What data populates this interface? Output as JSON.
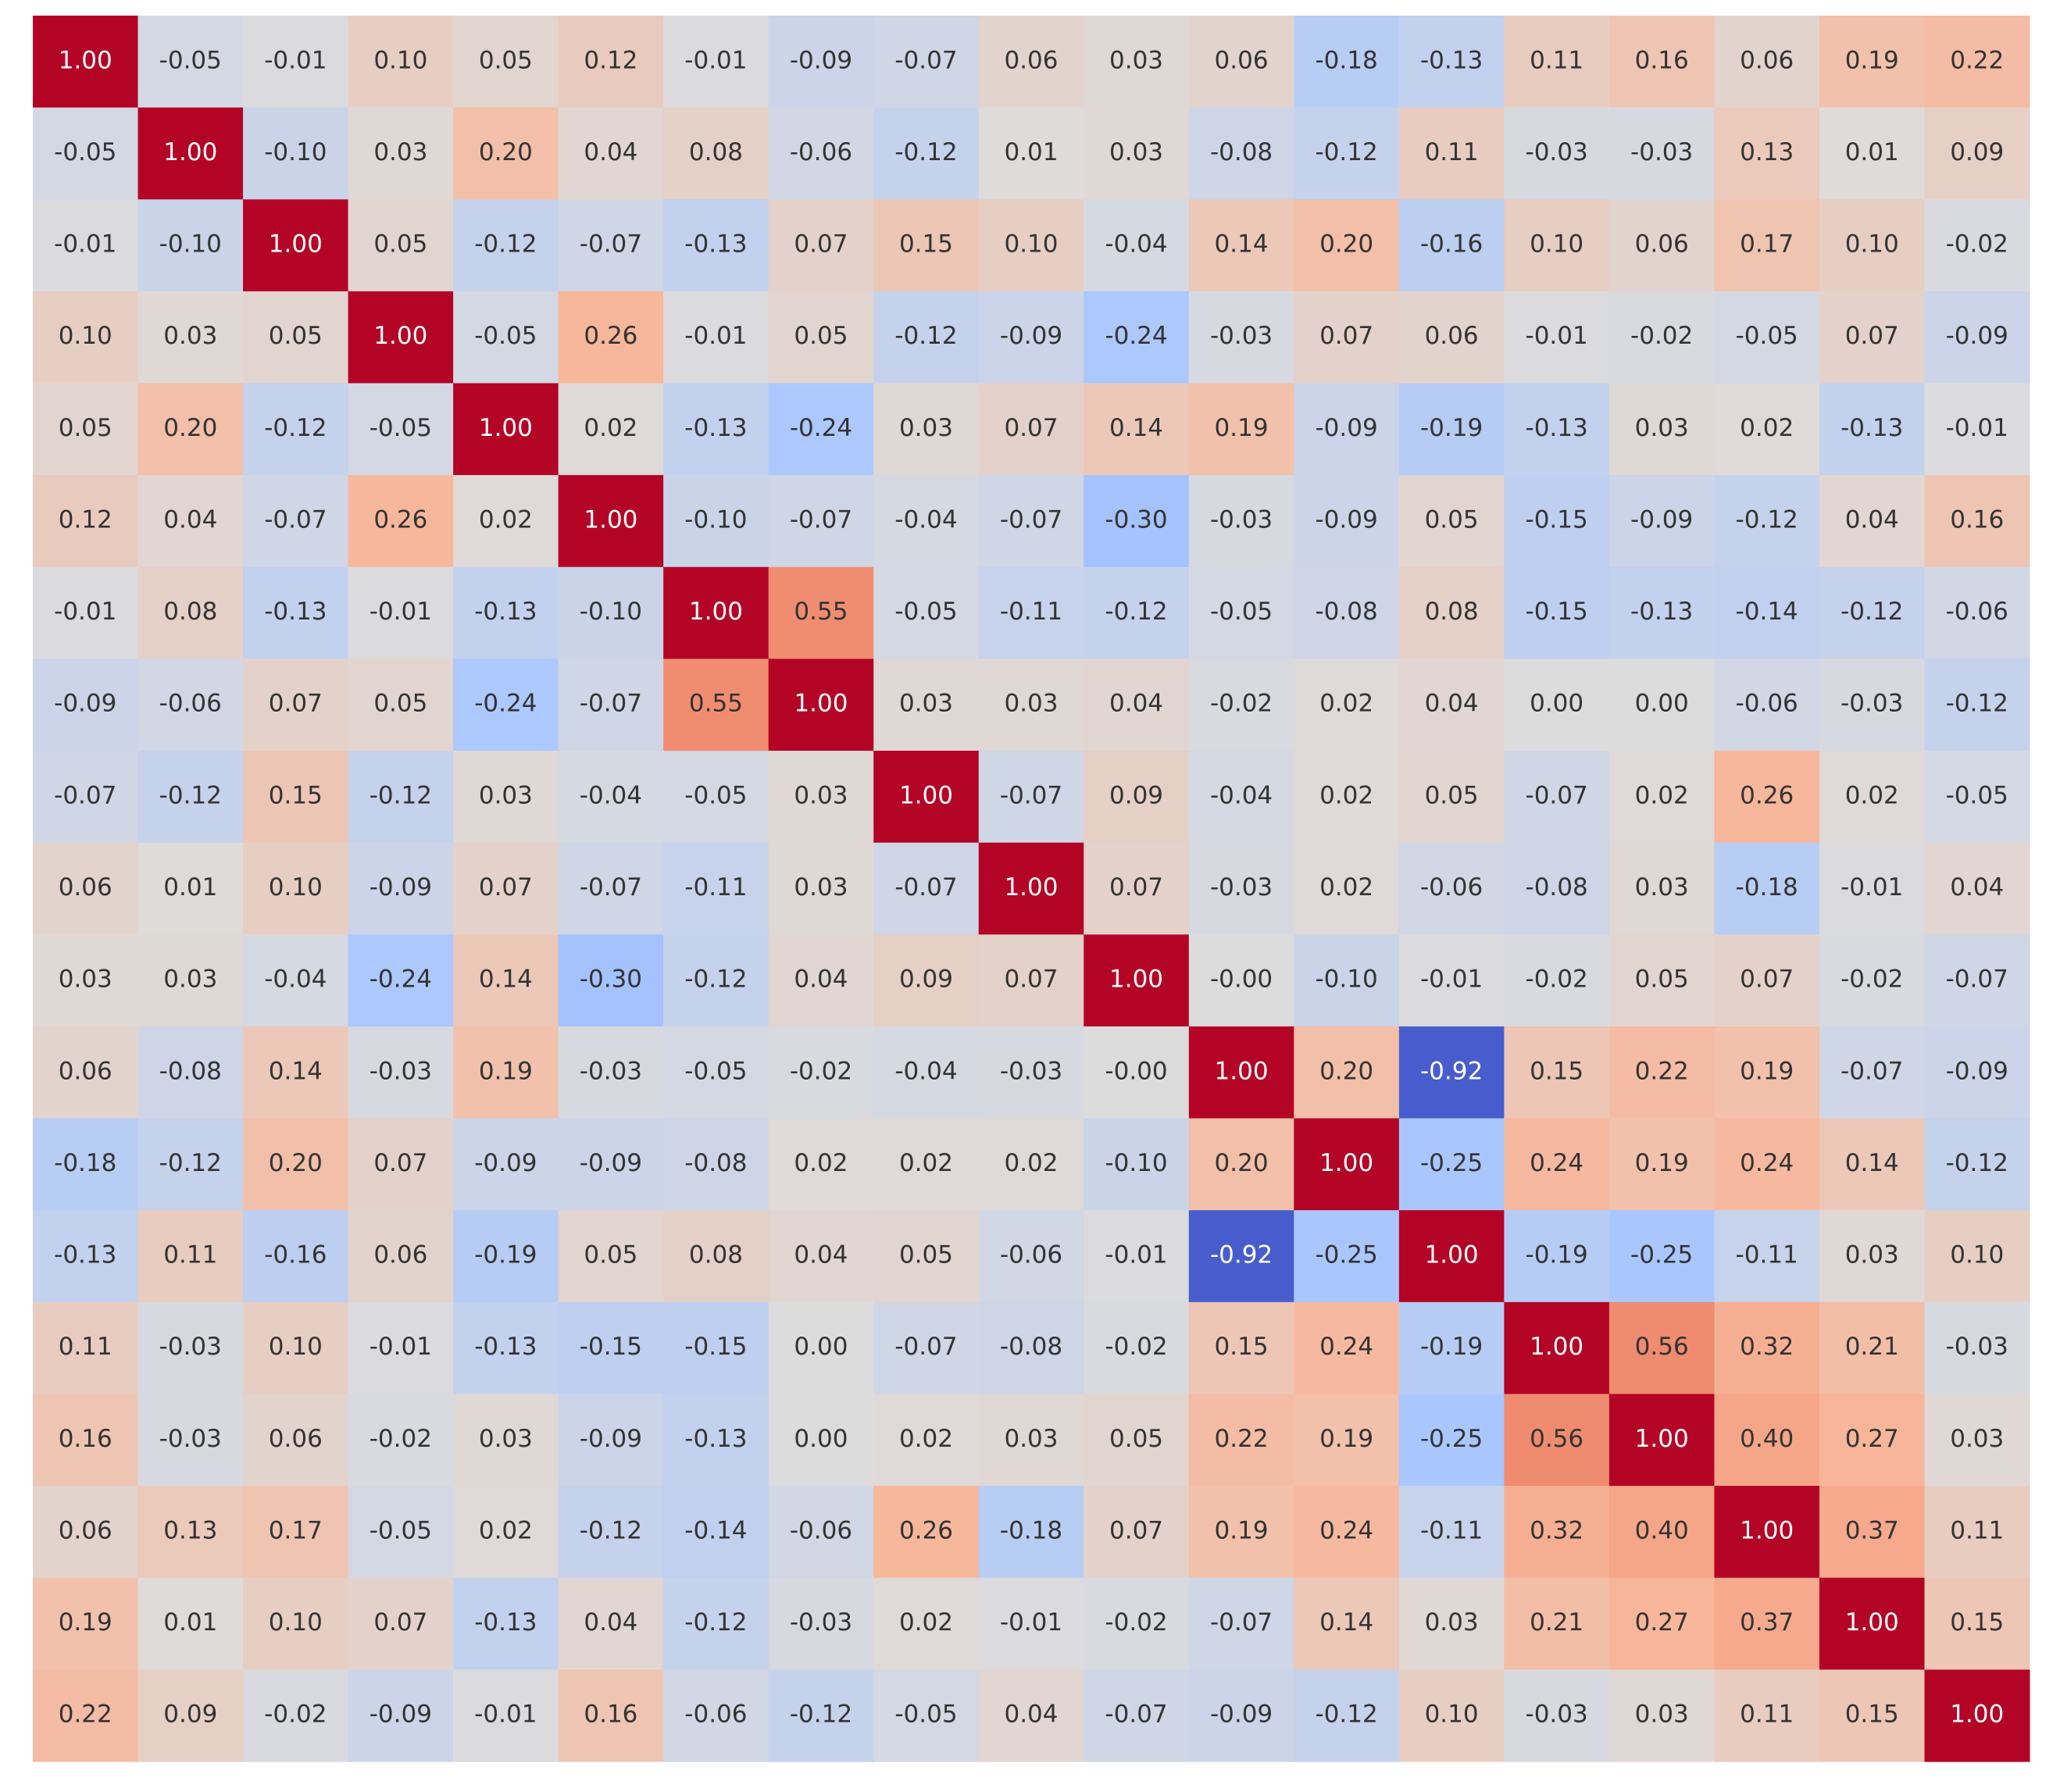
{
  "chart_data": {
    "type": "heatmap",
    "colormap": "coolwarm",
    "vlim": [
      -1,
      1
    ],
    "values": [
      [
        1.0,
        -0.05,
        -0.01,
        0.1,
        0.05,
        0.12,
        -0.01,
        -0.09,
        -0.07,
        0.06,
        0.03,
        0.06,
        -0.18,
        -0.13,
        0.11,
        0.16,
        0.06,
        0.19,
        0.22
      ],
      [
        -0.05,
        1.0,
        -0.1,
        0.03,
        0.2,
        0.04,
        0.08,
        -0.06,
        -0.12,
        0.01,
        0.03,
        -0.08,
        -0.12,
        0.11,
        -0.03,
        -0.03,
        0.13,
        0.01,
        0.09
      ],
      [
        -0.01,
        -0.1,
        1.0,
        0.05,
        -0.12,
        -0.07,
        -0.13,
        0.07,
        0.15,
        0.1,
        -0.04,
        0.14,
        0.2,
        -0.16,
        0.1,
        0.06,
        0.17,
        0.1,
        -0.02
      ],
      [
        0.1,
        0.03,
        0.05,
        1.0,
        -0.05,
        0.26,
        -0.01,
        0.05,
        -0.12,
        -0.09,
        -0.24,
        -0.03,
        0.07,
        0.06,
        -0.01,
        -0.02,
        -0.05,
        0.07,
        -0.09
      ],
      [
        0.05,
        0.2,
        -0.12,
        -0.05,
        1.0,
        0.02,
        -0.13,
        -0.24,
        0.03,
        0.07,
        0.14,
        0.19,
        -0.09,
        -0.19,
        -0.13,
        0.03,
        0.02,
        -0.13,
        -0.01
      ],
      [
        0.12,
        0.04,
        -0.07,
        0.26,
        0.02,
        1.0,
        -0.1,
        -0.07,
        -0.04,
        -0.07,
        -0.3,
        -0.03,
        -0.09,
        0.05,
        -0.15,
        -0.09,
        -0.12,
        0.04,
        0.16
      ],
      [
        -0.01,
        0.08,
        -0.13,
        -0.01,
        -0.13,
        -0.1,
        1.0,
        0.55,
        -0.05,
        -0.11,
        -0.12,
        -0.05,
        -0.08,
        0.08,
        -0.15,
        -0.13,
        -0.14,
        -0.12,
        -0.06
      ],
      [
        -0.09,
        -0.06,
        0.07,
        0.05,
        -0.24,
        -0.07,
        0.55,
        1.0,
        0.03,
        0.03,
        0.04,
        -0.02,
        0.02,
        0.04,
        0.0,
        0.0,
        -0.06,
        -0.03,
        -0.12
      ],
      [
        -0.07,
        -0.12,
        0.15,
        -0.12,
        0.03,
        -0.04,
        -0.05,
        0.03,
        1.0,
        -0.07,
        0.09,
        -0.04,
        0.02,
        0.05,
        -0.07,
        0.02,
        0.26,
        0.02,
        -0.05
      ],
      [
        0.06,
        0.01,
        0.1,
        -0.09,
        0.07,
        -0.07,
        -0.11,
        0.03,
        -0.07,
        1.0,
        0.07,
        -0.03,
        0.02,
        -0.06,
        -0.08,
        0.03,
        -0.18,
        -0.01,
        0.04
      ],
      [
        0.03,
        0.03,
        -0.04,
        -0.24,
        0.14,
        -0.3,
        -0.12,
        0.04,
        0.09,
        0.07,
        1.0,
        -0.0,
        -0.1,
        -0.01,
        -0.02,
        0.05,
        0.07,
        -0.02,
        -0.07
      ],
      [
        0.06,
        -0.08,
        0.14,
        -0.03,
        0.19,
        -0.03,
        -0.05,
        -0.02,
        -0.04,
        -0.03,
        -0.0,
        1.0,
        0.2,
        -0.92,
        0.15,
        0.22,
        0.19,
        -0.07,
        -0.09
      ],
      [
        -0.18,
        -0.12,
        0.2,
        0.07,
        -0.09,
        -0.09,
        -0.08,
        0.02,
        0.02,
        0.02,
        -0.1,
        0.2,
        1.0,
        -0.25,
        0.24,
        0.19,
        0.24,
        0.14,
        -0.12
      ],
      [
        -0.13,
        0.11,
        -0.16,
        0.06,
        -0.19,
        0.05,
        0.08,
        0.04,
        0.05,
        -0.06,
        -0.01,
        -0.92,
        -0.25,
        1.0,
        -0.19,
        -0.25,
        -0.11,
        0.03,
        0.1
      ],
      [
        0.11,
        -0.03,
        0.1,
        -0.01,
        -0.13,
        -0.15,
        -0.15,
        0.0,
        -0.07,
        -0.08,
        -0.02,
        0.15,
        0.24,
        -0.19,
        1.0,
        0.56,
        0.32,
        0.21,
        -0.03
      ],
      [
        0.16,
        -0.03,
        0.06,
        -0.02,
        0.03,
        -0.09,
        -0.13,
        0.0,
        0.02,
        0.03,
        0.05,
        0.22,
        0.19,
        -0.25,
        0.56,
        1.0,
        0.4,
        0.27,
        0.03
      ],
      [
        0.06,
        0.13,
        0.17,
        -0.05,
        0.02,
        -0.12,
        -0.14,
        -0.06,
        0.26,
        -0.18,
        0.07,
        0.19,
        0.24,
        -0.11,
        0.32,
        0.4,
        1.0,
        0.37,
        0.11
      ],
      [
        0.19,
        0.01,
        0.1,
        0.07,
        -0.13,
        0.04,
        -0.12,
        -0.03,
        0.02,
        -0.01,
        -0.02,
        -0.07,
        0.14,
        0.03,
        0.21,
        0.27,
        0.37,
        1.0,
        0.15
      ],
      [
        0.22,
        0.09,
        -0.02,
        -0.09,
        -0.01,
        0.16,
        -0.06,
        -0.12,
        -0.05,
        0.04,
        -0.07,
        -0.09,
        -0.12,
        0.1,
        -0.03,
        0.03,
        0.11,
        0.15,
        1.0
      ]
    ],
    "value_labels": [
      [
        "1.00",
        "-0.05",
        "-0.01",
        "0.10",
        "0.05",
        "0.12",
        "-0.01",
        "-0.09",
        "-0.07",
        "0.06",
        "0.03",
        "0.06",
        "-0.18",
        "-0.13",
        "0.11",
        "0.16",
        "0.06",
        "0.19",
        "0.22"
      ],
      [
        "-0.05",
        "1.00",
        "-0.10",
        "0.03",
        "0.20",
        "0.04",
        "0.08",
        "-0.06",
        "-0.12",
        "0.01",
        "0.03",
        "-0.08",
        "-0.12",
        "0.11",
        "-0.03",
        "-0.03",
        "0.13",
        "0.01",
        "0.09"
      ],
      [
        "-0.01",
        "-0.10",
        "1.00",
        "0.05",
        "-0.12",
        "-0.07",
        "-0.13",
        "0.07",
        "0.15",
        "0.10",
        "-0.04",
        "0.14",
        "0.20",
        "-0.16",
        "0.10",
        "0.06",
        "0.17",
        "0.10",
        "-0.02"
      ],
      [
        "0.10",
        "0.03",
        "0.05",
        "1.00",
        "-0.05",
        "0.26",
        "-0.01",
        "0.05",
        "-0.12",
        "-0.09",
        "-0.24",
        "-0.03",
        "0.07",
        "0.06",
        "-0.01",
        "-0.02",
        "-0.05",
        "0.07",
        "-0.09"
      ],
      [
        "0.05",
        "0.20",
        "-0.12",
        "-0.05",
        "1.00",
        "0.02",
        "-0.13",
        "-0.24",
        "0.03",
        "0.07",
        "0.14",
        "0.19",
        "-0.09",
        "-0.19",
        "-0.13",
        "0.03",
        "0.02",
        "-0.13",
        "-0.01"
      ],
      [
        "0.12",
        "0.04",
        "-0.07",
        "0.26",
        "0.02",
        "1.00",
        "-0.10",
        "-0.07",
        "-0.04",
        "-0.07",
        "-0.30",
        "-0.03",
        "-0.09",
        "0.05",
        "-0.15",
        "-0.09",
        "-0.12",
        "0.04",
        "0.16"
      ],
      [
        "-0.01",
        "0.08",
        "-0.13",
        "-0.01",
        "-0.13",
        "-0.10",
        "1.00",
        "0.55",
        "-0.05",
        "-0.11",
        "-0.12",
        "-0.05",
        "-0.08",
        "0.08",
        "-0.15",
        "-0.13",
        "-0.14",
        "-0.12",
        "-0.06"
      ],
      [
        "-0.09",
        "-0.06",
        "0.07",
        "0.05",
        "-0.24",
        "-0.07",
        "0.55",
        "1.00",
        "0.03",
        "0.03",
        "0.04",
        "-0.02",
        "0.02",
        "0.04",
        "0.00",
        "0.00",
        "-0.06",
        "-0.03",
        "-0.12"
      ],
      [
        "-0.07",
        "-0.12",
        "0.15",
        "-0.12",
        "0.03",
        "-0.04",
        "-0.05",
        "0.03",
        "1.00",
        "-0.07",
        "0.09",
        "-0.04",
        "0.02",
        "0.05",
        "-0.07",
        "0.02",
        "0.26",
        "0.02",
        "-0.05"
      ],
      [
        "0.06",
        "0.01",
        "0.10",
        "-0.09",
        "0.07",
        "-0.07",
        "-0.11",
        "0.03",
        "-0.07",
        "1.00",
        "0.07",
        "-0.03",
        "0.02",
        "-0.06",
        "-0.08",
        "0.03",
        "-0.18",
        "-0.01",
        "0.04"
      ],
      [
        "0.03",
        "0.03",
        "-0.04",
        "-0.24",
        "0.14",
        "-0.30",
        "-0.12",
        "0.04",
        "0.09",
        "0.07",
        "1.00",
        "-0.00",
        "-0.10",
        "-0.01",
        "-0.02",
        "0.05",
        "0.07",
        "-0.02",
        "-0.07"
      ],
      [
        "0.06",
        "-0.08",
        "0.14",
        "-0.03",
        "0.19",
        "-0.03",
        "-0.05",
        "-0.02",
        "-0.04",
        "-0.03",
        "-0.00",
        "1.00",
        "0.20",
        "-0.92",
        "0.15",
        "0.22",
        "0.19",
        "-0.07",
        "-0.09"
      ],
      [
        "-0.18",
        "-0.12",
        "0.20",
        "0.07",
        "-0.09",
        "-0.09",
        "-0.08",
        "0.02",
        "0.02",
        "0.02",
        "-0.10",
        "0.20",
        "1.00",
        "-0.25",
        "0.24",
        "0.19",
        "0.24",
        "0.14",
        "-0.12"
      ],
      [
        "-0.13",
        "0.11",
        "-0.16",
        "0.06",
        "-0.19",
        "0.05",
        "0.08",
        "0.04",
        "0.05",
        "-0.06",
        "-0.01",
        "-0.92",
        "-0.25",
        "1.00",
        "-0.19",
        "-0.25",
        "-0.11",
        "0.03",
        "0.10"
      ],
      [
        "0.11",
        "-0.03",
        "0.10",
        "-0.01",
        "-0.13",
        "-0.15",
        "-0.15",
        "0.00",
        "-0.07",
        "-0.08",
        "-0.02",
        "0.15",
        "0.24",
        "-0.19",
        "1.00",
        "0.56",
        "0.32",
        "0.21",
        "-0.03"
      ],
      [
        "0.16",
        "-0.03",
        "0.06",
        "-0.02",
        "0.03",
        "-0.09",
        "-0.13",
        "0.00",
        "0.02",
        "0.03",
        "0.05",
        "0.22",
        "0.19",
        "-0.25",
        "0.56",
        "1.00",
        "0.40",
        "0.27",
        "0.03"
      ],
      [
        "0.06",
        "0.13",
        "0.17",
        "-0.05",
        "0.02",
        "-0.12",
        "-0.14",
        "-0.06",
        "0.26",
        "-0.18",
        "0.07",
        "0.19",
        "0.24",
        "-0.11",
        "0.32",
        "0.40",
        "1.00",
        "0.37",
        "0.11"
      ],
      [
        "0.19",
        "0.01",
        "0.10",
        "0.07",
        "-0.13",
        "0.04",
        "-0.12",
        "-0.03",
        "0.02",
        "-0.01",
        "-0.02",
        "-0.07",
        "0.14",
        "0.03",
        "0.21",
        "0.27",
        "0.37",
        "1.00",
        "0.15"
      ],
      [
        "0.22",
        "0.09",
        "-0.02",
        "-0.09",
        "-0.01",
        "0.16",
        "-0.06",
        "-0.12",
        "-0.05",
        "0.04",
        "-0.07",
        "-0.09",
        "-0.12",
        "0.10",
        "-0.03",
        "0.03",
        "0.11",
        "0.15",
        "1.00"
      ]
    ]
  }
}
